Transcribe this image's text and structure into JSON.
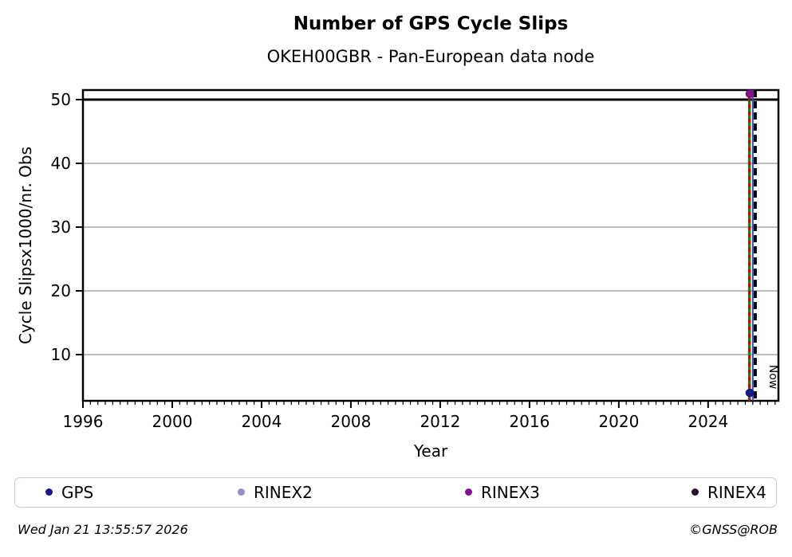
{
  "chart_data": {
    "type": "scatter",
    "title": "Number of GPS Cycle Slips",
    "subtitle": "OKEH00GBR - Pan-European data node",
    "xlabel": "Year",
    "ylabel": "Cycle Slipsx1000/nr. Obs",
    "xlim": [
      1996,
      2027.15
    ],
    "ylim": [
      2.75,
      51.5
    ],
    "x_ticks": [
      1996,
      2000,
      2004,
      2008,
      2012,
      2016,
      2020,
      2024
    ],
    "x_minor_ticks_per_year": 3,
    "y_ticks": [
      10,
      20,
      30,
      40,
      50
    ],
    "grid": "horizontal-only",
    "grid_color": "#b2b2b2",
    "frame_color": "#000000",
    "threshold_line": {
      "y": 50,
      "color": "#000000",
      "style": "solid"
    },
    "series": [
      {
        "name": "GPS",
        "color": "#16168f",
        "points": [
          {
            "x": 2025.87,
            "y": 4.0
          }
        ]
      },
      {
        "name": "RINEX2",
        "color": "#8f8fd0",
        "points": []
      },
      {
        "name": "RINEX3",
        "color": "#82128f",
        "points": [
          {
            "x": 2025.87,
            "y": 50.9
          }
        ]
      },
      {
        "name": "RINEX4",
        "color": "#2a0d30",
        "points": []
      }
    ],
    "vlines": [
      {
        "x": 2025.85,
        "color": "#1e7d1e",
        "style": "solid",
        "width": 3.5
      },
      {
        "x": 2025.85,
        "color": "#d40000",
        "style": "dashed",
        "dash": [
          4.5,
          4.5
        ],
        "width": 3
      },
      {
        "x": 2026.0,
        "color": "#2753cc",
        "style": "solid",
        "width": 2
      },
      {
        "x": 2026.11,
        "color": "#000000",
        "style": "dashed",
        "dash": [
          9,
          5
        ],
        "width": 4,
        "label": "Now"
      }
    ],
    "legend_position": "bottom",
    "footer": {
      "timestamp": "Wed Jan 21 13:55:57 2026",
      "credit": "©GNSS@ROB"
    }
  }
}
